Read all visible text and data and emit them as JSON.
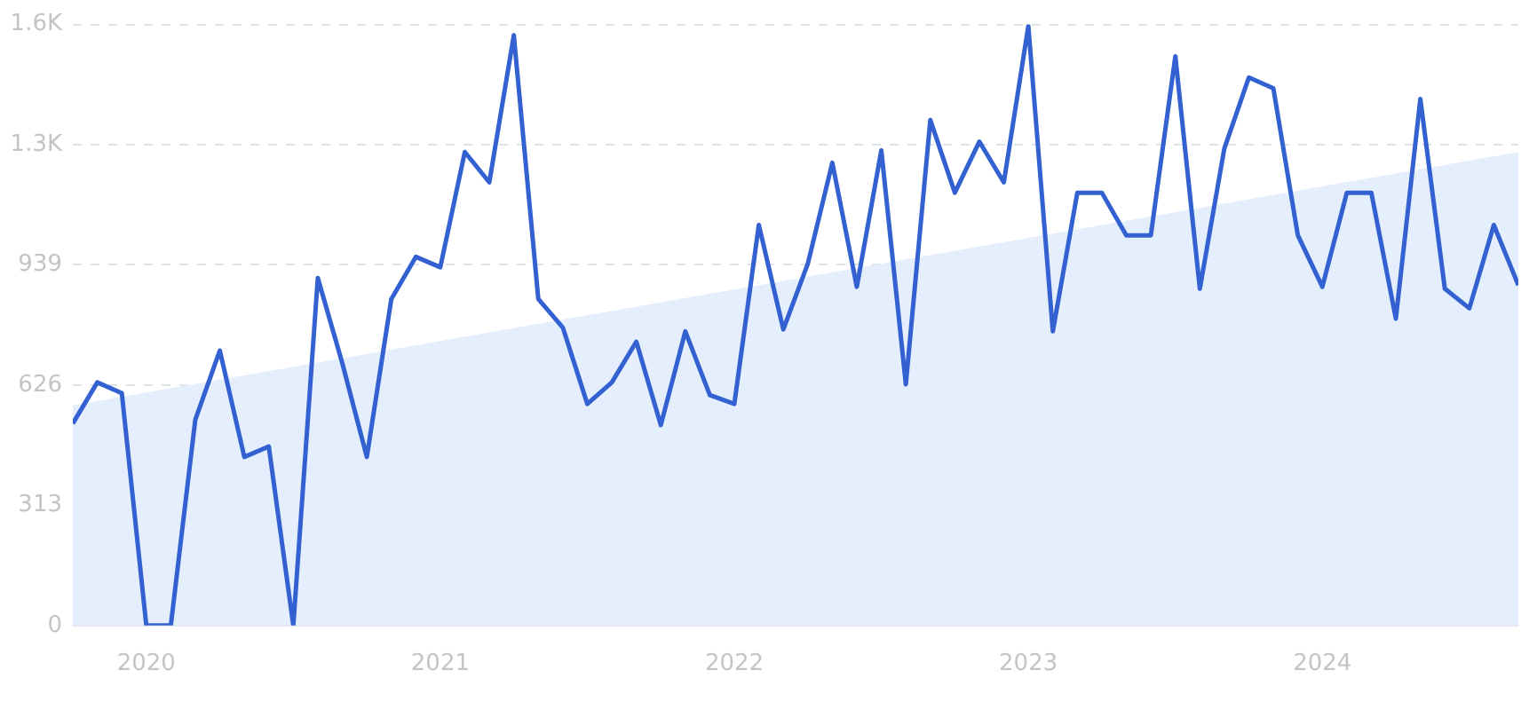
{
  "chart_data": {
    "type": "line",
    "x": [
      "2019-10",
      "2019-11",
      "2019-12",
      "2020-01",
      "2020-02",
      "2020-03",
      "2020-04",
      "2020-05",
      "2020-06",
      "2020-07",
      "2020-08",
      "2020-09",
      "2020-10",
      "2020-11",
      "2020-12",
      "2021-01",
      "2021-02",
      "2021-03",
      "2021-04",
      "2021-05",
      "2021-06",
      "2021-07",
      "2021-08",
      "2021-09",
      "2021-10",
      "2021-11",
      "2021-12",
      "2022-01",
      "2022-02",
      "2022-03",
      "2022-04",
      "2022-05",
      "2022-06",
      "2022-07",
      "2022-08",
      "2022-09",
      "2022-10",
      "2022-11",
      "2022-12",
      "2023-01",
      "2023-02",
      "2023-03",
      "2023-04",
      "2023-05",
      "2023-06",
      "2023-07",
      "2023-08",
      "2023-09",
      "2023-10",
      "2023-11",
      "2023-12",
      "2024-01",
      "2024-02",
      "2024-03",
      "2024-04",
      "2024-05",
      "2024-06",
      "2024-07",
      "2024-08",
      "2024-09"
    ],
    "series": [
      {
        "type": "area",
        "color": "#e4eefc",
        "x": [
          "2019-10",
          "2024-09"
        ],
        "values": [
          573,
          1233
        ]
      },
      {
        "type": "line",
        "color": "#3461d1",
        "values": [
          526,
          633,
          605,
          0,
          0,
          536,
          716,
          439,
          466,
          0,
          905,
          683,
          439,
          850,
          960,
          933,
          1233,
          1154,
          1537,
          850,
          776,
          577,
          633,
          739,
          522,
          766,
          600,
          577,
          1043,
          771,
          942,
          1205,
          882,
          1237,
          628,
          1316,
          1127,
          1260,
          1154,
          1561,
          766,
          1127,
          1127,
          1016,
          1016,
          1482,
          877,
          1242,
          1427,
          1399,
          1016,
          882,
          1127,
          1127,
          799,
          1371,
          877,
          826,
          1043,
          886
        ]
      }
    ],
    "xlim": [
      "2019-10",
      "2024-09"
    ],
    "xticks": [
      "2020",
      "2021",
      "2022",
      "2023",
      "2024"
    ],
    "ylim": [
      0,
      1565
    ],
    "yticks": [
      0,
      313,
      626,
      939,
      {
        "value": 1252,
        "label": "1.3K"
      },
      {
        "value": 1565,
        "label": "1.6K"
      }
    ],
    "grid": "y",
    "legend": false
  }
}
